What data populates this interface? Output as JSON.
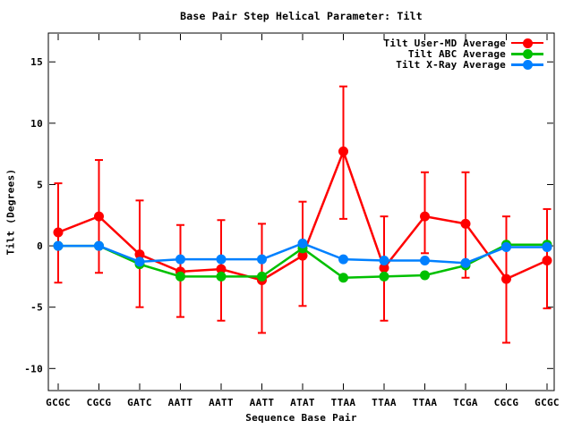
{
  "chart_data": {
    "type": "line",
    "title": "Base Pair Step Helical Parameter: Tilt",
    "xlabel": "Sequence Base Pair",
    "ylabel": "Tilt (Degrees)",
    "categories": [
      "GCGC",
      "CGCG",
      "GATC",
      "AATT",
      "AATT",
      "AATT",
      "ATAT",
      "TTAA",
      "TTAA",
      "TTAA",
      "TCGA",
      "CGCG",
      "GCGC"
    ],
    "yticks": [
      15,
      10,
      5,
      0,
      -5,
      -10
    ],
    "ylim": [
      -11.8,
      17.35
    ],
    "grid": false,
    "legend_position": "top-right-inside",
    "background_color": "#ffffff",
    "axis_color": "#000000",
    "series": [
      {
        "name": "Tilt User-MD Average",
        "color": "#ff0000",
        "marker": "filled-circle",
        "error_bars": true,
        "values": [
          1.1,
          2.4,
          -0.7,
          -2.1,
          -1.9,
          -2.8,
          -0.8,
          7.7,
          -1.8,
          2.4,
          1.8,
          -2.7,
          -1.2
        ],
        "err_hi": [
          5.1,
          7.0,
          3.7,
          1.7,
          2.1,
          1.8,
          3.6,
          13.0,
          2.4,
          6.0,
          6.0,
          2.4,
          3.0
        ],
        "err_lo": [
          -3.0,
          -2.2,
          -5.0,
          -5.8,
          -6.1,
          -7.1,
          -4.9,
          2.2,
          -6.1,
          -0.6,
          -2.6,
          -7.9,
          -5.1
        ]
      },
      {
        "name": "Tilt ABC Average",
        "color": "#00c000",
        "marker": "filled-circle",
        "error_bars": false,
        "values": [
          0.0,
          0.0,
          -1.5,
          -2.5,
          -2.5,
          -2.5,
          -0.2,
          -2.6,
          -2.5,
          -2.4,
          -1.6,
          0.1,
          0.1
        ]
      },
      {
        "name": "Tilt X-Ray Average",
        "color": "#0080ff",
        "marker": "filled-circle",
        "error_bars": false,
        "values": [
          0.0,
          0.0,
          -1.3,
          -1.1,
          -1.1,
          -1.1,
          0.2,
          -1.1,
          -1.2,
          -1.2,
          -1.4,
          -0.1,
          -0.1
        ]
      }
    ]
  }
}
